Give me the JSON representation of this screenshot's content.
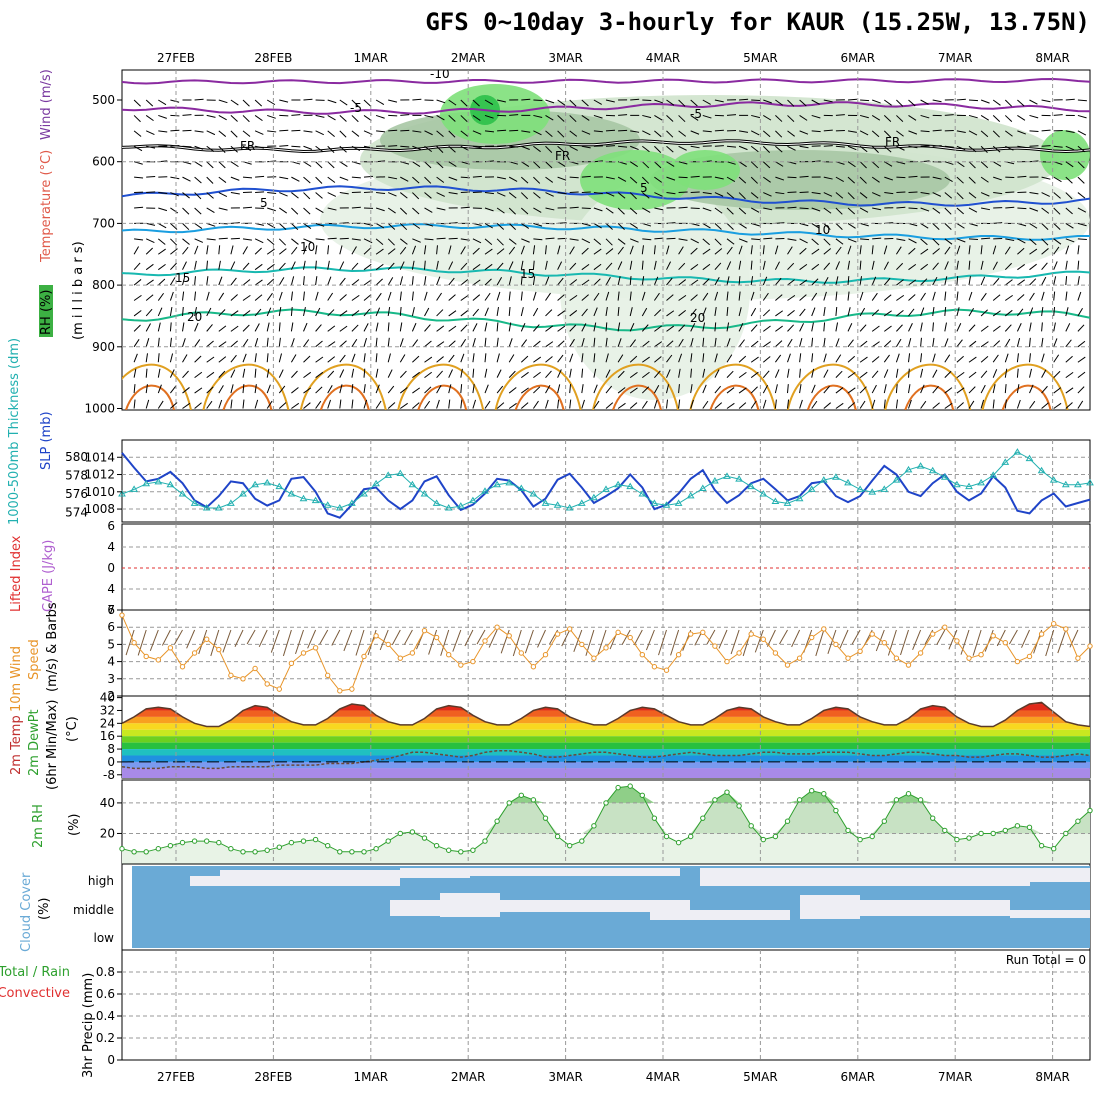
{
  "title": "GFS 0~10day 3-hourly for KAUR (15.25W, 13.75N)",
  "dates": [
    "27FEB",
    "28FEB",
    "1MAR",
    "2MAR",
    "3MAR",
    "4MAR",
    "5MAR",
    "6MAR",
    "7MAR",
    "8MAR"
  ],
  "colors": {
    "rh": "#3cb043",
    "temp": "#e05a4a",
    "wind": "#7a3aa0",
    "thickness": "#22b0b0",
    "slp": "#1f44c8",
    "cape": "#b060d0",
    "li": "#e03030",
    "wind10": "#e8952a",
    "temp2m": "#c03030",
    "rh2m": "#2ea02e",
    "cloud": "#6aaad6",
    "precip_total": "#2ea02e",
    "precip_conv": "#e03030"
  },
  "panels": {
    "upper": {
      "ylabel_parts": [
        "RH (%)",
        "Temperature (°C)",
        "Wind (m/s)"
      ],
      "ylabel_units": "(m i l l i b a r s)",
      "yticks": [
        "500",
        "600",
        "700",
        "800",
        "900",
        "1000"
      ]
    },
    "thick": {
      "ylabel_thick": "1000-500mb Thickness (dm)",
      "ylabel_slp": "SLP (mb)",
      "ticks_left": [
        "574",
        "576",
        "578",
        "580"
      ],
      "ticks_right": [
        "1008",
        "1010",
        "1012",
        "1014"
      ]
    },
    "cape": {
      "ylabel_li": "Lifted Index",
      "ylabel_cape": "CAPE (J/kg)",
      "yticks": [
        "6",
        "4",
        "2",
        "0",
        "2",
        "4",
        "6"
      ]
    },
    "wind10": {
      "ylabel1": "10m Wind",
      "ylabel2": "Speed",
      "ylabel3": "(m/s) & Barbs",
      "yticks": [
        "7",
        "6",
        "5",
        "4",
        "3",
        "2"
      ]
    },
    "t2m": {
      "ylabel1": "2m Temp",
      "ylabel2": "2m DewPt",
      "ylabel3": "(6hr Min/Max)",
      "ylabel4": "(°C)",
      "yticks": [
        "40",
        "32",
        "24",
        "16",
        "8",
        "0",
        "-8"
      ]
    },
    "rh2m": {
      "ylabel1": "2m RH",
      "ylabel2": "(%)",
      "yticks": [
        "40",
        "20"
      ]
    },
    "cloud": {
      "ylabel1": "Cloud Cover",
      "ylabel2": "(%)",
      "levels": [
        "high",
        "middle",
        "low"
      ]
    },
    "precip": {
      "ylabel_total": "Total / Rain",
      "ylabel_conv": "Convective",
      "ylabel_main": "3hr Precip (mm)",
      "yticks": [
        "0",
        "0.2",
        "0.4",
        "0.6",
        "0.8"
      ],
      "run_total": "Run Total = 0"
    }
  },
  "chart_data": [
    {
      "type": "line",
      "panel": "sounding",
      "x_unit": "hours from start (3-hourly)",
      "contours_temp_c": [
        -10,
        -5,
        0,
        5,
        10,
        15,
        20
      ],
      "freezing_label": "FR",
      "rh_shading_pct": [
        30,
        50,
        70,
        90
      ],
      "rh_labels": [
        "30",
        "50",
        "70",
        "90"
      ]
    },
    {
      "type": "line",
      "panel": "thickness_slp",
      "x": [
        0,
        3,
        6,
        9,
        12,
        15,
        18,
        21,
        24,
        27,
        30,
        33,
        36,
        39,
        42,
        45,
        48,
        51,
        54,
        57,
        60,
        63,
        66,
        69,
        72,
        75,
        78,
        81,
        84,
        87,
        90,
        93,
        96,
        99,
        102,
        105,
        108,
        111,
        114,
        117,
        120,
        123,
        126,
        129,
        132,
        135,
        138,
        141,
        144,
        147,
        150,
        153,
        156,
        159,
        162,
        165,
        168,
        171,
        174,
        177,
        180,
        183,
        186,
        189,
        192,
        195,
        198,
        201,
        204,
        207,
        210,
        213,
        216,
        219,
        222,
        225,
        228,
        231,
        234,
        237,
        240
      ],
      "series": [
        {
          "name": "SLP (mb)",
          "unit": "mb",
          "ylim": [
            1006.5,
            1016
          ],
          "values": [
            1014.5,
            1012.8,
            1011.2,
            1011.5,
            1012.3,
            1011.0,
            1009.0,
            1008.2,
            1009.5,
            1011.2,
            1011.0,
            1009.2,
            1008.4,
            1009.0,
            1011.5,
            1011.7,
            1010.0,
            1007.5,
            1007.0,
            1008.5,
            1010.3,
            1010.5,
            1009.0,
            1008.0,
            1009.0,
            1011.2,
            1011.8,
            1009.6,
            1007.9,
            1008.5,
            1009.8,
            1011.5,
            1011.3,
            1010.2,
            1008.3,
            1009.2,
            1011.4,
            1012.1,
            1010.5,
            1008.7,
            1009.5,
            1010.4,
            1012.0,
            1010.5,
            1008.0,
            1008.5,
            1009.8,
            1011.5,
            1012.5,
            1010.2,
            1008.7,
            1009.6,
            1011.0,
            1011.5,
            1010.3,
            1009.0,
            1009.5,
            1011.0,
            1011.2,
            1009.5,
            1008.8,
            1009.5,
            1011.3,
            1013.0,
            1012.0,
            1010.0,
            1009.5,
            1011.0,
            1012.0,
            1010.0,
            1009.0,
            1009.8,
            1011.8,
            1010.5,
            1007.8,
            1007.5,
            1009.0,
            1009.8,
            1008.3,
            1008.7,
            1009.1
          ]
        },
        {
          "name": "1000-500mb Thickness (dm)",
          "unit": "dm",
          "ylim": [
            573,
            581.8
          ],
          "values": [
            576.0,
            576.5,
            577.1,
            577.3,
            577.0,
            576.0,
            575.0,
            574.5,
            574.5,
            575.0,
            576.0,
            577.0,
            577.2,
            576.8,
            576.0,
            575.5,
            575.3,
            574.8,
            574.5,
            575.0,
            576.0,
            577.1,
            578.0,
            578.2,
            577.0,
            576.0,
            575.0,
            574.5,
            574.7,
            575.3,
            576.3,
            577.0,
            577.2,
            576.6,
            576.0,
            575.0,
            574.8,
            574.5,
            575.0,
            575.6,
            576.5,
            577.0,
            576.8,
            576.0,
            575.0,
            574.8,
            575.0,
            575.8,
            576.6,
            577.4,
            577.9,
            577.6,
            576.8,
            576.0,
            575.2,
            575.0,
            575.5,
            576.5,
            577.5,
            577.8,
            577.2,
            576.5,
            576.2,
            576.5,
            577.5,
            578.6,
            579.0,
            578.5,
            577.8,
            577.0,
            576.8,
            577.2,
            578.0,
            579.4,
            580.5,
            579.8,
            578.5,
            577.5,
            577.0,
            577.0,
            577.2
          ]
        }
      ]
    },
    {
      "type": "line",
      "panel": "cape_li",
      "series": [
        {
          "name": "Lifted Index",
          "values": []
        },
        {
          "name": "CAPE (J/kg)",
          "values": []
        }
      ],
      "reference_line": 0
    },
    {
      "type": "line",
      "panel": "wind10m",
      "unit": "m/s",
      "ylim": [
        2,
        7
      ],
      "series": [
        {
          "name": "10m Wind Speed",
          "values": [
            6.7,
            5.1,
            4.3,
            4.1,
            4.8,
            3.7,
            4.5,
            5.3,
            4.7,
            3.2,
            3.0,
            3.6,
            2.7,
            2.4,
            3.9,
            4.5,
            4.8,
            3.2,
            2.3,
            2.4,
            4.3,
            5.5,
            5.0,
            4.2,
            4.5,
            5.8,
            5.4,
            4.4,
            3.8,
            4.0,
            5.2,
            6.0,
            5.5,
            4.5,
            3.7,
            4.4,
            5.6,
            5.9,
            5.0,
            4.2,
            4.8,
            5.7,
            5.4,
            4.4,
            3.7,
            3.5,
            4.4,
            5.6,
            5.7,
            4.9,
            4.0,
            4.5,
            5.6,
            5.3,
            4.5,
            3.8,
            4.2,
            5.4,
            5.9,
            5.0,
            4.2,
            4.6,
            5.6,
            5.1,
            4.2,
            3.8,
            4.5,
            5.6,
            6.0,
            5.2,
            4.2,
            4.4,
            5.5,
            5.1,
            4.0,
            4.3,
            5.6,
            6.2,
            5.9,
            4.2,
            4.9
          ]
        }
      ]
    },
    {
      "type": "area",
      "panel": "temp2m",
      "unit": "°C",
      "ylim": [
        -10,
        41
      ],
      "series": [
        {
          "name": "2m Temp",
          "values": [
            24,
            28,
            33,
            34,
            33,
            28,
            24,
            22,
            22,
            26,
            32,
            35,
            34,
            29,
            25,
            23,
            23,
            27,
            33,
            36,
            35,
            29,
            25,
            23,
            23,
            27,
            33,
            35,
            34,
            29,
            25,
            23,
            23,
            27,
            32,
            34,
            33,
            28,
            25,
            23,
            23,
            27,
            32,
            34,
            33,
            29,
            25,
            23,
            23,
            27,
            32,
            34,
            33,
            28,
            25,
            23,
            23,
            27,
            32,
            34,
            33,
            28,
            25,
            23,
            23,
            27,
            33,
            35,
            34,
            28,
            24,
            22,
            22,
            26,
            32,
            36,
            37,
            31,
            25,
            23,
            22
          ]
        },
        {
          "name": "2m DewPt",
          "values": [
            -3,
            -4,
            -4,
            -4,
            -3,
            -3,
            -3,
            -4,
            -4,
            -3,
            -3,
            -3,
            -3,
            -2,
            -2,
            -2,
            -2,
            -1,
            -1,
            -1,
            0,
            1,
            2,
            4,
            6,
            6,
            5,
            4,
            3,
            4,
            6,
            7,
            7,
            6,
            5,
            3,
            3,
            4,
            5,
            6,
            6,
            5,
            4,
            3,
            3,
            4,
            5,
            6,
            5,
            4,
            4,
            4,
            5,
            6,
            6,
            5,
            5,
            5,
            6,
            6,
            6,
            5,
            4,
            4,
            5,
            6,
            6,
            5,
            4,
            4,
            3,
            3,
            4,
            5,
            5,
            4,
            3,
            3,
            4,
            5,
            4
          ]
        }
      ]
    },
    {
      "type": "area",
      "panel": "rh2m",
      "unit": "%",
      "ylim": [
        0,
        55
      ],
      "series": [
        {
          "name": "2m RH",
          "values": [
            10,
            8,
            8,
            10,
            12,
            14,
            15,
            15,
            14,
            10,
            8,
            8,
            9,
            11,
            14,
            15,
            16,
            12,
            8,
            8,
            8,
            10,
            15,
            20,
            21,
            17,
            12,
            9,
            8,
            9,
            15,
            28,
            40,
            45,
            42,
            30,
            18,
            12,
            15,
            25,
            40,
            50,
            51,
            45,
            30,
            18,
            14,
            18,
            30,
            42,
            47,
            38,
            25,
            16,
            18,
            28,
            42,
            48,
            46,
            35,
            22,
            16,
            18,
            28,
            42,
            46,
            42,
            30,
            22,
            16,
            17,
            20,
            20,
            22,
            25,
            24,
            12,
            10,
            20,
            28,
            35
          ]
        }
      ]
    },
    {
      "type": "heatmap",
      "panel": "cloud",
      "levels": [
        "high",
        "middle",
        "low"
      ],
      "note": "cloud cover fraction shown as filled blue boxes per 3hr step"
    },
    {
      "type": "bar",
      "panel": "precip",
      "unit": "mm",
      "ylim": [
        0,
        1
      ],
      "series": [
        {
          "name": "Total / Rain",
          "values": []
        },
        {
          "name": "Convective",
          "values": []
        }
      ]
    }
  ]
}
